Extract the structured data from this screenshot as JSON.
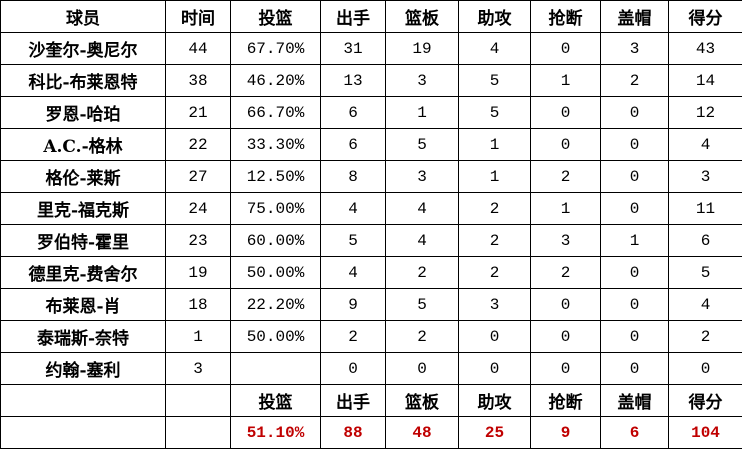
{
  "colors": {
    "total_text": "#c00000",
    "border": "#000000"
  },
  "headers": [
    "球员",
    "时间",
    "投篮",
    "出手",
    "篮板",
    "助攻",
    "抢断",
    "盖帽",
    "得分"
  ],
  "rows": [
    [
      "沙奎尔-奥尼尔",
      "44",
      "67.70%",
      "31",
      "19",
      "4",
      "0",
      "3",
      "43"
    ],
    [
      "科比-布莱恩特",
      "38",
      "46.20%",
      "13",
      "3",
      "5",
      "1",
      "2",
      "14"
    ],
    [
      "罗恩-哈珀",
      "21",
      "66.70%",
      "6",
      "1",
      "5",
      "0",
      "0",
      "12"
    ],
    [
      "A.C.-格林",
      "22",
      "33.30%",
      "6",
      "5",
      "1",
      "0",
      "0",
      "4"
    ],
    [
      "格伦-莱斯",
      "27",
      "12.50%",
      "8",
      "3",
      "1",
      "2",
      "0",
      "3"
    ],
    [
      "里克-福克斯",
      "24",
      "75.00%",
      "4",
      "4",
      "2",
      "1",
      "0",
      "11"
    ],
    [
      "罗伯特-霍里",
      "23",
      "60.00%",
      "5",
      "4",
      "2",
      "3",
      "1",
      "6"
    ],
    [
      "德里克-费舍尔",
      "19",
      "50.00%",
      "4",
      "2",
      "2",
      "2",
      "0",
      "5"
    ],
    [
      "布莱恩-肖",
      "18",
      "22.20%",
      "9",
      "5",
      "3",
      "0",
      "0",
      "4"
    ],
    [
      "泰瑞斯-奈特",
      "1",
      "50.00%",
      "2",
      "2",
      "0",
      "0",
      "0",
      "2"
    ],
    [
      "约翰-塞利",
      "3",
      "",
      "0",
      "0",
      "0",
      "0",
      "0",
      "0"
    ]
  ],
  "summary_labels": [
    "",
    "",
    "投篮",
    "出手",
    "篮板",
    "助攻",
    "抢断",
    "盖帽",
    "得分"
  ],
  "totals": [
    "",
    "",
    "51.10%",
    "88",
    "48",
    "25",
    "9",
    "6",
    "104"
  ]
}
